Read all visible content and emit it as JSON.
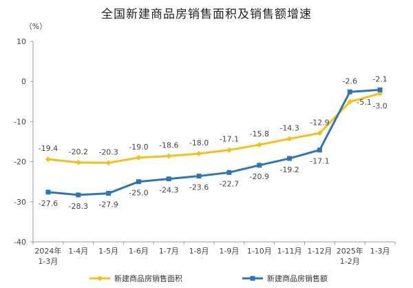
{
  "chart_data": {
    "type": "line",
    "title": "全国新建商品房销售面积及销售额增速",
    "ylabel": "（%）",
    "ylim": [
      -40,
      10
    ],
    "yticks": [
      10,
      0,
      -10,
      -20,
      -30,
      -40
    ],
    "categories": [
      [
        "2024年",
        "1-3月"
      ],
      [
        "1-4月"
      ],
      [
        "1-5月"
      ],
      [
        "1-6月"
      ],
      [
        "1-7月"
      ],
      [
        "1-8月"
      ],
      [
        "1-9月"
      ],
      [
        "1-10月"
      ],
      [
        "1-11月"
      ],
      [
        "1-12月"
      ],
      [
        "2025年",
        "1-2月"
      ],
      [
        "1-3月"
      ]
    ],
    "legend_position": "bottom",
    "series": [
      {
        "name": "新建商品房销售面积",
        "color": "#F5C018",
        "marker": "diamond",
        "values": [
          -19.4,
          -20.2,
          -20.3,
          -19.0,
          -18.6,
          -18.0,
          -17.1,
          -15.8,
          -14.3,
          -12.9,
          -5.1,
          -3.0
        ],
        "labels": [
          "-19.4",
          "-20.2",
          "-20.3",
          "-19.0",
          "-18.6",
          "-18.0",
          "-17.1",
          "-15.8",
          "-14.3",
          "-12.9",
          "-5.1",
          "-3.0"
        ]
      },
      {
        "name": "新建商品房销售额",
        "color": "#2E75B6",
        "marker": "square",
        "values": [
          -27.6,
          -28.3,
          -27.9,
          -25.0,
          -24.3,
          -23.6,
          -22.7,
          -20.9,
          -19.2,
          -17.1,
          -2.6,
          -2.1
        ],
        "labels": [
          "-27.6",
          "-28.3",
          "-27.9",
          "-25.0",
          "-24.3",
          "-23.6",
          "-22.7",
          "-20.9",
          "-19.2",
          "-17.1",
          "-2.6",
          "-2.1"
        ]
      }
    ]
  }
}
